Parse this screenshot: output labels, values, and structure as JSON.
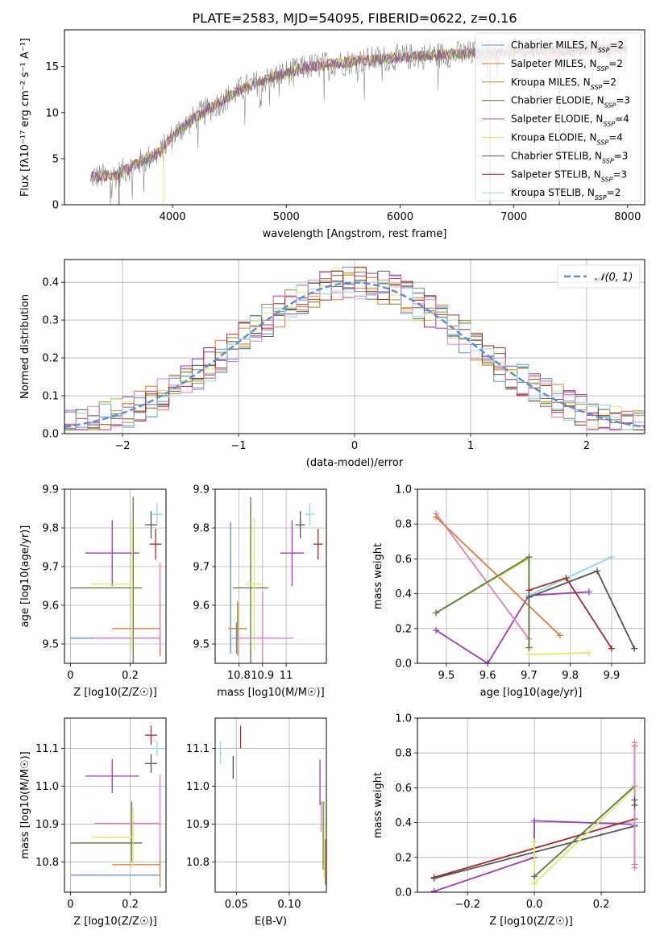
{
  "title": "PLATE=2583, MJD=54095, FIBERID=0622, z=0.16",
  "colors": {
    "chabrier_miles": "#5b8fd6",
    "salpeter_miles": "#e07b39",
    "kroupa_miles": "#b5861e",
    "chabrier_elodie": "#5a7a3e",
    "salpeter_elodie": "#9b3fb5",
    "kroupa_elodie": "#d9ec6e",
    "chabrier_stelib": "#555555",
    "salpeter_stelib": "#a52a2a",
    "kroupa_stelib": "#8fd6e0",
    "pink": "#e07fbf",
    "gray_spectrum": "#888888",
    "normal_curve": "#5b8fd6"
  },
  "legend_models": [
    {
      "name": "Chabrier MILES",
      "nssp": "2",
      "color": "#5b8fd6"
    },
    {
      "name": "Salpeter MILES",
      "nssp": "2",
      "color": "#e07b39"
    },
    {
      "name": "Kroupa MILES",
      "nssp": "2",
      "color": "#b5861e"
    },
    {
      "name": "Chabrier ELODIE",
      "nssp": "3",
      "color": "#5a7a3e"
    },
    {
      "name": "Salpeter ELODIE",
      "nssp": "4",
      "color": "#9b3fb5"
    },
    {
      "name": "Kroupa ELODIE",
      "nssp": "4",
      "color": "#d9ec6e"
    },
    {
      "name": "Chabrier STELIB",
      "nssp": "3",
      "color": "#555555"
    },
    {
      "name": "Salpeter STELIB",
      "nssp": "3",
      "color": "#a52a2a"
    },
    {
      "name": "Kroupa STELIB",
      "nssp": "2",
      "color": "#8fd6e0"
    }
  ],
  "chart_data": [
    {
      "id": "spectrum",
      "type": "line",
      "xlabel": "wavelength [Angstrom, rest frame]",
      "ylabel": "Flux [fλ10⁻¹⁷ erg cm⁻² s⁻¹ A⁻¹]",
      "xlim": [
        3050,
        8150
      ],
      "ylim": [
        0,
        19
      ],
      "xticks": [
        4000,
        5000,
        6000,
        7000,
        8000
      ],
      "yticks": [
        0,
        5,
        10,
        15
      ],
      "continuum": {
        "x": [
          3280,
          3500,
          3700,
          3900,
          4000,
          4200,
          4400,
          4600,
          4800,
          5000,
          5200,
          5400,
          5600,
          5800,
          6000,
          6200,
          6400,
          6600,
          6800,
          7000,
          7200,
          7400,
          7600,
          7800,
          8000
        ],
        "y": [
          3.0,
          3.2,
          4.5,
          5.8,
          7.5,
          9.5,
          11.0,
          12.5,
          13.5,
          14.3,
          15.0,
          15.3,
          15.6,
          15.8,
          16.0,
          16.2,
          16.3,
          16.4,
          16.5,
          16.6,
          16.6,
          16.7,
          16.8,
          16.9,
          17.0
        ]
      },
      "legend_location": "upper right",
      "grid": false
    },
    {
      "id": "residuals",
      "type": "histogram",
      "xlabel": "(data-model)/error",
      "ylabel": "Normed distribution",
      "xlim": [
        -2.5,
        2.5
      ],
      "ylim": [
        0,
        0.46
      ],
      "xticks": [
        -2,
        -1,
        0,
        1,
        2
      ],
      "yticks": [
        0.0,
        0.1,
        0.2,
        0.3,
        0.4
      ],
      "bin_edges": [
        -2.5,
        -2.4,
        -2.3,
        -2.2,
        -2.1,
        -2.0,
        -1.9,
        -1.8,
        -1.7,
        -1.6,
        -1.5,
        -1.4,
        -1.3,
        -1.2,
        -1.1,
        -1.0,
        -0.9,
        -0.8,
        -0.7,
        -0.6,
        -0.5,
        -0.4,
        -0.3,
        -0.2,
        -0.1,
        0.0,
        0.1,
        0.2,
        0.3,
        0.4,
        0.5,
        0.6,
        0.7,
        0.8,
        0.9,
        1.0,
        1.1,
        1.2,
        1.3,
        1.4,
        1.5,
        1.6,
        1.7,
        1.8,
        1.9,
        2.0,
        2.1,
        2.2,
        2.3,
        2.4,
        2.5
      ],
      "normal_label": "𝒩(0, 1)",
      "legend_location": "upper right",
      "grid": true
    },
    {
      "id": "age_vs_Z",
      "type": "errorbar",
      "xlabel": "Z [log10(Z/Z☉)]",
      "ylabel": "age  [log10(age/yr)]",
      "xlim": [
        -0.02,
        0.32
      ],
      "ylim": [
        9.45,
        9.9
      ],
      "xticks": [
        0.0,
        0.2
      ],
      "yticks": [
        9.5,
        9.6,
        9.7,
        9.8,
        9.9
      ],
      "points": [
        {
          "model": "chabrier_miles",
          "x": 0.15,
          "xerr": 0.15,
          "y": 9.515,
          "yerr": 0.0
        },
        {
          "model": "salpeter_miles",
          "x": 0.3,
          "xerr": 0.0,
          "y": 9.54,
          "yerr": 0.07
        },
        {
          "model": "salpeter_miles_h",
          "x": 0.22,
          "xerr": 0.08,
          "y": 9.54,
          "yerr": 0.0
        },
        {
          "model": "kroupa_miles",
          "x": 0.3,
          "xerr": 0.0,
          "y": 9.5,
          "yerr": 0.03
        },
        {
          "model": "chabrier_elodie",
          "x": 0.21,
          "xerr": 0.0,
          "y": 9.645,
          "yerr": 0.235
        },
        {
          "model": "chabrier_elodie_h",
          "x": 0.12,
          "xerr": 0.12,
          "y": 9.645,
          "yerr": 0.0
        },
        {
          "model": "salpeter_elodie",
          "x": 0.14,
          "xerr": 0.09,
          "y": 9.735,
          "yerr": 0.085
        },
        {
          "model": "kroupa_elodie",
          "x": 0.14,
          "xerr": 0.07,
          "y": 9.655,
          "yerr": 0.0
        },
        {
          "model": "kroupa_elodie_v",
          "x": 0.207,
          "xerr": 0.0,
          "y": 9.655,
          "yerr": 0.17
        },
        {
          "model": "pink",
          "x": 0.19,
          "xerr": 0.11,
          "y": 9.515,
          "yerr": 0.0
        },
        {
          "model": "pink_v",
          "x": 0.3,
          "xerr": 0.0,
          "y": 9.6,
          "yerr": 0.11
        },
        {
          "model": "chabrier_stelib",
          "x": 0.27,
          "xerr": 0.02,
          "y": 9.808,
          "yerr": 0.035
        },
        {
          "model": "salpeter_stelib",
          "x": 0.285,
          "xerr": 0.02,
          "y": 9.758,
          "yerr": 0.04
        },
        {
          "model": "kroupa_stelib",
          "x": 0.29,
          "xerr": 0.02,
          "y": 9.835,
          "yerr": 0.03
        }
      ]
    },
    {
      "id": "age_vs_mass",
      "type": "errorbar",
      "xlabel": "mass [log10(M/M☉)]",
      "xlim": [
        10.7,
        11.17
      ],
      "ylim": [
        9.45,
        9.9
      ],
      "xticks": [
        10.8,
        10.9,
        11.0
      ],
      "yticks": [
        9.5,
        9.6,
        9.7,
        9.8,
        9.9
      ],
      "points": [
        {
          "model": "chabrier_miles",
          "x": 10.765,
          "xerr": 0.0,
          "y": 9.645,
          "yerr": 0.17
        },
        {
          "model": "salpeter_miles",
          "x": 10.795,
          "xerr": 0.04,
          "y": 9.54,
          "yerr": 0.07
        },
        {
          "model": "kroupa_miles",
          "x": 10.795,
          "xerr": 0.0,
          "y": 9.56,
          "yerr": 0.05
        },
        {
          "model": "chabrier_elodie",
          "x": 10.85,
          "xerr": 0.075,
          "y": 9.645,
          "yerr": 0.235
        },
        {
          "model": "kroupa_elodie",
          "x": 10.865,
          "xerr": 0.035,
          "y": 9.655,
          "yerr": 0.17
        },
        {
          "model": "pink",
          "x": 10.9,
          "xerr": 0.13,
          "y": 9.515,
          "yerr": 0.12
        },
        {
          "model": "salpeter_elodie",
          "x": 11.025,
          "xerr": 0.05,
          "y": 9.735,
          "yerr": 0.085
        },
        {
          "model": "chabrier_stelib",
          "x": 11.06,
          "xerr": 0.02,
          "y": 9.808,
          "yerr": 0.035
        },
        {
          "model": "kroupa_stelib",
          "x": 11.1,
          "xerr": 0.02,
          "y": 9.835,
          "yerr": 0.03
        },
        {
          "model": "salpeter_stelib",
          "x": 11.135,
          "xerr": 0.02,
          "y": 9.758,
          "yerr": 0.04
        },
        {
          "model": "chabrier_miles_h",
          "x": 10.79,
          "xerr": 0.0,
          "y": 9.515,
          "yerr": 0.04
        }
      ]
    },
    {
      "id": "weight_vs_age",
      "type": "line",
      "xlabel": "age  [log10(age/yr)]",
      "ylabel": "mass weight",
      "xlim": [
        9.43,
        9.98
      ],
      "ylim": [
        0,
        1
      ],
      "xticks": [
        9.5,
        9.6,
        9.7,
        9.8,
        9.9
      ],
      "yticks": [
        0.0,
        0.2,
        0.4,
        0.6,
        0.8,
        1.0
      ],
      "series": [
        {
          "model": "salpeter_elodie",
          "x": [
            9.475,
            9.6,
            9.7,
            9.845
          ],
          "y": [
            0.19,
            0.0,
            0.39,
            0.41
          ]
        },
        {
          "model": "pink",
          "x": [
            9.475,
            9.7
          ],
          "y": [
            0.86,
            0.14
          ]
        },
        {
          "model": "salpeter_miles",
          "x": [
            9.475,
            9.775
          ],
          "y": [
            0.84,
            0.16
          ]
        },
        {
          "model": "kroupa_elodie",
          "x": [
            9.475,
            9.7,
            9.7,
            9.845
          ],
          "y": [
            0.29,
            0.6,
            0.05,
            0.06
          ]
        },
        {
          "model": "chabrier_elodie",
          "x": [
            9.7,
            9.7
          ],
          "y": [
            0.61,
            0.09
          ]
        },
        {
          "model": "chabrier_elodie_b",
          "x": [
            9.475,
            9.7
          ],
          "y": [
            0.29,
            0.61
          ]
        },
        {
          "model": "kroupa_stelib",
          "x": [
            9.7,
            9.9
          ],
          "y": [
            0.39,
            0.61
          ]
        },
        {
          "model": "salpeter_stelib",
          "x": [
            9.7,
            9.79,
            9.9
          ],
          "y": [
            0.42,
            0.49,
            0.085
          ]
        },
        {
          "model": "chabrier_stelib",
          "x": [
            9.7,
            9.865,
            9.955
          ],
          "y": [
            0.38,
            0.53,
            0.085
          ]
        }
      ],
      "grid": true
    },
    {
      "id": "mass_vs_Z",
      "type": "errorbar",
      "xlabel": "Z [log10(Z/Z☉)]",
      "ylabel": "mass [log10(M/M☉)]",
      "xlim": [
        -0.02,
        0.32
      ],
      "ylim": [
        10.72,
        11.18
      ],
      "xticks": [
        0.0,
        0.2
      ],
      "yticks": [
        10.8,
        10.9,
        11.0,
        11.1
      ],
      "points": [
        {
          "model": "chabrier_miles",
          "x": 0.15,
          "xerr": 0.15,
          "y": 10.765,
          "yerr": 0.0
        },
        {
          "model": "salpeter_miles",
          "x": 0.22,
          "xerr": 0.08,
          "y": 10.793,
          "yerr": 0.0
        },
        {
          "model": "salpeter_miles_v",
          "x": 0.3,
          "xerr": 0.0,
          "y": 10.793,
          "yerr": 0.06
        },
        {
          "model": "chabrier_elodie",
          "x": 0.12,
          "xerr": 0.12,
          "y": 10.85,
          "yerr": 0.0
        },
        {
          "model": "chabrier_elodie_v",
          "x": 0.205,
          "xerr": 0.0,
          "y": 10.88,
          "yerr": 0.08
        },
        {
          "model": "kroupa_elodie",
          "x": 0.14,
          "xerr": 0.07,
          "y": 10.865,
          "yerr": 0.0
        },
        {
          "model": "kroupa_elodie_v",
          "x": 0.21,
          "xerr": 0.0,
          "y": 10.865,
          "yerr": 0.08
        },
        {
          "model": "pink",
          "x": 0.19,
          "xerr": 0.11,
          "y": 10.902,
          "yerr": 0.0
        },
        {
          "model": "pink_v",
          "x": 0.3,
          "xerr": 0.0,
          "y": 10.92,
          "yerr": 0.11
        },
        {
          "model": "salpeter_elodie",
          "x": 0.14,
          "xerr": 0.09,
          "y": 11.027,
          "yerr": 0.045
        },
        {
          "model": "chabrier_stelib",
          "x": 0.27,
          "xerr": 0.02,
          "y": 11.06,
          "yerr": 0.025
        },
        {
          "model": "kroupa_stelib",
          "x": 0.29,
          "xerr": 0.02,
          "y": 11.1,
          "yerr": 0.02
        },
        {
          "model": "salpeter_stelib",
          "x": 0.27,
          "xerr": 0.02,
          "y": 11.135,
          "yerr": 0.025
        }
      ]
    },
    {
      "id": "mass_vs_ebv",
      "type": "errorbar",
      "xlabel": "E(B-V)",
      "xlim": [
        0.03,
        0.135
      ],
      "ylim": [
        10.72,
        11.18
      ],
      "xticks": [
        0.05,
        0.1
      ],
      "xticklabels": [
        "0.05",
        "0.10"
      ],
      "yticks": [
        10.8,
        10.9,
        11.0,
        11.1
      ],
      "points": [
        {
          "model": "kroupa_stelib",
          "x": 0.035,
          "y": 11.09,
          "yerr": 0.03
        },
        {
          "model": "chabrier_stelib",
          "x": 0.047,
          "y": 11.05,
          "yerr": 0.03
        },
        {
          "model": "salpeter_stelib",
          "x": 0.054,
          "y": 11.13,
          "yerr": 0.03
        },
        {
          "model": "salpeter_elodie",
          "x": 0.129,
          "y": 11.01,
          "yerr": 0.06
        },
        {
          "model": "pink",
          "x": 0.13,
          "y": 10.92,
          "yerr": 0.04
        },
        {
          "model": "chabrier_elodie",
          "x": 0.132,
          "y": 10.87,
          "yerr": 0.09
        },
        {
          "model": "kroupa_elodie",
          "x": 0.133,
          "y": 10.86,
          "yerr": 0.1
        },
        {
          "model": "salpeter_miles",
          "x": 0.134,
          "y": 10.8,
          "yerr": 0.06
        }
      ]
    },
    {
      "id": "weight_vs_Z",
      "type": "line",
      "xlabel": "Z [log10(Z/Z☉)]",
      "ylabel": "mass weight",
      "xlim": [
        -0.35,
        0.33
      ],
      "ylim": [
        0,
        1
      ],
      "xticks": [
        -0.2,
        0.0,
        0.2
      ],
      "xticklabels": [
        "−0.2",
        "0.0",
        "0.2"
      ],
      "yticks": [
        0.0,
        0.2,
        0.4,
        0.6,
        0.8,
        1.0
      ],
      "series": [
        {
          "model": "salpeter_elodie",
          "x": [
            -0.3,
            0.0,
            0.0,
            0.3
          ],
          "y": [
            0.005,
            0.2,
            0.41,
            0.39
          ]
        },
        {
          "model": "salpeter_stelib",
          "x": [
            -0.3,
            0.3
          ],
          "y": [
            0.085,
            0.42
          ]
        },
        {
          "model": "chabrier_stelib",
          "x": [
            -0.3,
            0.3
          ],
          "y": [
            0.08,
            0.38
          ]
        },
        {
          "model": "kroupa_elodie",
          "x": [
            0.0,
            0.0,
            0.3
          ],
          "y": [
            0.29,
            0.05,
            0.6
          ]
        },
        {
          "model": "chabrier_elodie",
          "x": [
            0.0,
            0.3
          ],
          "y": [
            0.09,
            0.61
          ]
        },
        {
          "model": "kroupa_stelib",
          "x": [
            0.3,
            0.3
          ],
          "y": [
            0.61,
            0.39
          ]
        },
        {
          "model": "salpeter_miles",
          "x": [
            0.3,
            0.3
          ],
          "y": [
            0.84,
            0.16
          ]
        },
        {
          "model": "pink",
          "x": [
            0.3,
            0.3
          ],
          "y": [
            0.86,
            0.14
          ]
        },
        {
          "model": "chabrier_stelib_b",
          "x": [
            0.3,
            0.3
          ],
          "y": [
            0.53,
            0.5
          ]
        }
      ],
      "grid": true
    }
  ]
}
